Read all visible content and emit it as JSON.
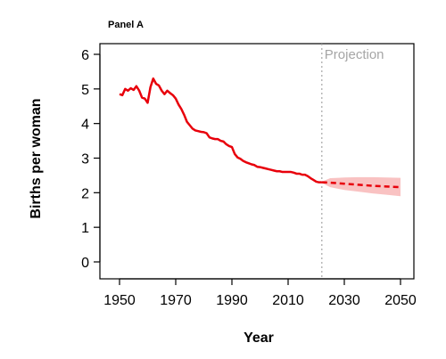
{
  "chart_data": {
    "type": "line",
    "panel_label": "Panel A",
    "xlabel": "Year",
    "ylabel": "Births per woman",
    "xlim": [
      1950,
      2050
    ],
    "ylim": [
      0,
      6
    ],
    "x_ticks": [
      "1950",
      "1970",
      "1990",
      "2010",
      "2030",
      "2050"
    ],
    "y_ticks": [
      "0",
      "1",
      "2",
      "3",
      "4",
      "5",
      "6"
    ],
    "grid": false,
    "projection_start": 2022,
    "projection_label": "Projection",
    "colors": {
      "line": "#e8000b",
      "band": "#f7b3b3",
      "divider": "#a6a6a6"
    },
    "series": [
      {
        "style": "solid",
        "x": [
          1950,
          1951,
          1952,
          1953,
          1954,
          1955,
          1956,
          1957,
          1958,
          1959,
          1960,
          1961,
          1962,
          1963,
          1964,
          1965,
          1966,
          1967,
          1968,
          1969,
          1970,
          1971,
          1972,
          1973,
          1974,
          1975,
          1976,
          1977,
          1978,
          1979,
          1980,
          1981,
          1982,
          1983,
          1984,
          1985,
          1986,
          1987,
          1988,
          1989,
          1990,
          1991,
          1992,
          1993,
          1994,
          1995,
          1996,
          1997,
          1998,
          1999,
          2000,
          2001,
          2002,
          2003,
          2004,
          2005,
          2006,
          2007,
          2008,
          2009,
          2010,
          2011,
          2012,
          2013,
          2014,
          2015,
          2016,
          2017,
          2018,
          2019,
          2020,
          2021,
          2022
        ],
        "y": [
          4.85,
          4.82,
          5.0,
          4.95,
          5.02,
          4.97,
          5.08,
          4.95,
          4.75,
          4.72,
          4.6,
          5.05,
          5.3,
          5.15,
          5.1,
          4.95,
          4.85,
          4.95,
          4.88,
          4.82,
          4.72,
          4.55,
          4.42,
          4.25,
          4.05,
          3.95,
          3.85,
          3.8,
          3.78,
          3.76,
          3.75,
          3.72,
          3.6,
          3.57,
          3.55,
          3.55,
          3.5,
          3.48,
          3.4,
          3.35,
          3.32,
          3.12,
          3.02,
          2.98,
          2.92,
          2.88,
          2.85,
          2.82,
          2.8,
          2.75,
          2.74,
          2.72,
          2.7,
          2.68,
          2.66,
          2.64,
          2.62,
          2.62,
          2.6,
          2.6,
          2.6,
          2.6,
          2.58,
          2.55,
          2.55,
          2.52,
          2.52,
          2.48,
          2.42,
          2.37,
          2.32,
          2.3,
          2.3
        ]
      },
      {
        "style": "dashed",
        "x": [
          2022,
          2025,
          2030,
          2035,
          2040,
          2045,
          2050
        ],
        "y": [
          2.3,
          2.29,
          2.26,
          2.23,
          2.2,
          2.18,
          2.16
        ],
        "band_upper": [
          2.32,
          2.42,
          2.44,
          2.45,
          2.45,
          2.44,
          2.43
        ],
        "band_lower": [
          2.28,
          2.16,
          2.08,
          2.03,
          1.98,
          1.94,
          1.9
        ]
      }
    ]
  }
}
